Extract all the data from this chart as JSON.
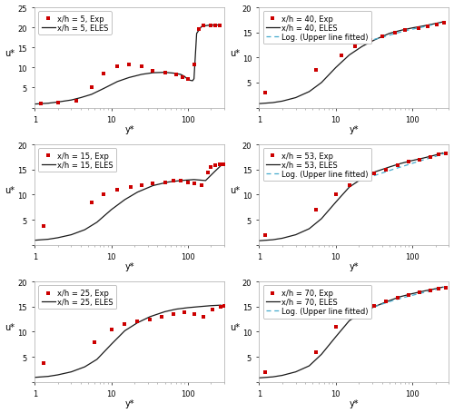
{
  "subplots": [
    {
      "label_exp": "x/h = 5, Exp",
      "label_eles": "x/h = 5, ELES",
      "ylim": [
        0,
        25
      ],
      "yticks": [
        0,
        5,
        10,
        15,
        20,
        25
      ],
      "xlim": [
        1,
        300
      ],
      "has_log_line": false,
      "exp_x": [
        1.2,
        2.0,
        3.5,
        5.5,
        8.0,
        12,
        17,
        25,
        35,
        50,
        70,
        85,
        100,
        120,
        140,
        160,
        200,
        230,
        260
      ],
      "exp_y": [
        1.0,
        1.3,
        1.8,
        5.2,
        8.5,
        10.2,
        10.8,
        10.2,
        9.2,
        8.8,
        8.2,
        7.5,
        7.2,
        10.8,
        19.5,
        20.5,
        20.6,
        20.5,
        20.5
      ],
      "eles_x": [
        1.0,
        1.5,
        2.0,
        3.0,
        4.0,
        5.5,
        8.0,
        12,
        17,
        25,
        35,
        50,
        65,
        80,
        90,
        100,
        108,
        115,
        120,
        130,
        150,
        180,
        220,
        260
      ],
      "eles_y": [
        0.9,
        1.1,
        1.4,
        1.9,
        2.5,
        3.3,
        4.8,
        6.5,
        7.5,
        8.3,
        8.7,
        8.8,
        8.6,
        8.3,
        7.8,
        7.0,
        6.8,
        6.7,
        7.2,
        18.5,
        20.2,
        20.5,
        20.6,
        20.6
      ]
    },
    {
      "label_exp": "x/h = 40, Exp",
      "label_eles": "x/h = 40, ELES",
      "label_log": "Log. (Upper line fitted)",
      "ylim": [
        0,
        20
      ],
      "yticks": [
        0,
        5,
        10,
        15,
        20
      ],
      "xlim": [
        1,
        300
      ],
      "has_log_line": true,
      "exp_x": [
        1.2,
        5.5,
        12,
        18,
        28,
        40,
        60,
        80,
        120,
        160,
        210,
        260
      ],
      "exp_y": [
        3.0,
        7.5,
        10.5,
        12.3,
        13.5,
        14.3,
        15.0,
        15.5,
        15.9,
        16.3,
        16.6,
        17.0
      ],
      "eles_x": [
        1.0,
        1.5,
        2.0,
        3.0,
        4.5,
        6.5,
        10,
        15,
        22,
        32,
        50,
        70,
        100,
        140,
        190,
        250
      ],
      "eles_y": [
        0.8,
        1.0,
        1.3,
        2.0,
        3.2,
        5.0,
        8.0,
        10.5,
        12.2,
        13.5,
        14.8,
        15.4,
        15.9,
        16.3,
        16.7,
        17.1
      ],
      "log_x": [
        25,
        40,
        60,
        90,
        130,
        180,
        250
      ],
      "log_y": [
        13.2,
        14.0,
        14.8,
        15.5,
        16.0,
        16.5,
        17.0
      ]
    },
    {
      "label_exp": "x/h = 15, Exp",
      "label_eles": "x/h = 15, ELES",
      "ylim": [
        0,
        20
      ],
      "yticks": [
        0,
        5,
        10,
        15,
        20
      ],
      "xlim": [
        1,
        300
      ],
      "has_log_line": false,
      "exp_x": [
        1.3,
        5.5,
        8.0,
        12,
        18,
        25,
        35,
        50,
        65,
        80,
        100,
        120,
        150,
        180,
        200,
        230,
        260,
        280,
        300
      ],
      "exp_y": [
        3.7,
        8.5,
        10.0,
        11.0,
        11.5,
        11.8,
        12.2,
        12.5,
        12.8,
        12.7,
        12.5,
        12.2,
        11.8,
        14.5,
        15.5,
        15.8,
        16.0,
        16.0,
        16.0
      ],
      "eles_x": [
        1.0,
        1.5,
        2.0,
        3.0,
        4.5,
        6.5,
        10,
        15,
        22,
        35,
        55,
        80,
        120,
        170,
        220,
        270
      ],
      "eles_y": [
        0.9,
        1.1,
        1.4,
        2.0,
        3.0,
        4.5,
        7.0,
        9.0,
        10.5,
        11.8,
        12.5,
        12.8,
        13.0,
        12.8,
        14.5,
        15.8
      ]
    },
    {
      "label_exp": "x/h = 53, Exp",
      "label_eles": "x/h = 53, ELES",
      "label_log": "Log. (Upper line fitted)",
      "ylim": [
        0,
        20
      ],
      "yticks": [
        0,
        5,
        10,
        15,
        20
      ],
      "xlim": [
        1,
        300
      ],
      "has_log_line": true,
      "exp_x": [
        1.2,
        5.5,
        10,
        15,
        22,
        32,
        45,
        65,
        90,
        125,
        170,
        220,
        270
      ],
      "exp_y": [
        2.0,
        7.0,
        10.0,
        11.8,
        13.2,
        14.2,
        15.0,
        15.8,
        16.5,
        17.0,
        17.5,
        18.0,
        18.3
      ],
      "eles_x": [
        1.0,
        1.5,
        2.0,
        3.0,
        4.5,
        6.5,
        10,
        15,
        22,
        32,
        50,
        70,
        100,
        140,
        190,
        250
      ],
      "eles_y": [
        0.8,
        1.0,
        1.3,
        2.0,
        3.2,
        5.2,
        8.5,
        11.5,
        13.2,
        14.5,
        15.5,
        16.2,
        16.8,
        17.3,
        17.8,
        18.3
      ],
      "log_x": [
        20,
        35,
        55,
        85,
        130,
        190,
        260
      ],
      "log_y": [
        12.8,
        14.0,
        15.0,
        15.9,
        16.8,
        17.5,
        18.2
      ]
    },
    {
      "label_exp": "x/h = 25, Exp",
      "label_eles": "x/h = 25, ELES",
      "ylim": [
        0,
        20
      ],
      "yticks": [
        0,
        5,
        10,
        15,
        20
      ],
      "xlim": [
        1,
        300
      ],
      "has_log_line": false,
      "exp_x": [
        1.3,
        6.0,
        10,
        15,
        22,
        32,
        45,
        65,
        90,
        120,
        160,
        210,
        265,
        300
      ],
      "exp_y": [
        3.8,
        8.0,
        10.5,
        11.5,
        12.0,
        12.5,
        13.0,
        13.5,
        13.8,
        13.5,
        13.0,
        14.5,
        15.0,
        15.2
      ],
      "eles_x": [
        1.0,
        1.5,
        2.0,
        3.0,
        4.5,
        6.5,
        10,
        15,
        22,
        32,
        50,
        70,
        100,
        140,
        200,
        270
      ],
      "eles_y": [
        0.9,
        1.1,
        1.4,
        2.0,
        3.0,
        4.5,
        7.5,
        10.2,
        11.8,
        13.0,
        14.0,
        14.5,
        14.8,
        15.0,
        15.2,
        15.3
      ]
    },
    {
      "label_exp": "x/h = 70, Exp",
      "label_eles": "x/h = 70, ELES",
      "label_log": "Log. (Upper line fitted)",
      "ylim": [
        0,
        20
      ],
      "yticks": [
        0,
        5,
        10,
        15,
        20
      ],
      "xlim": [
        1,
        300
      ],
      "has_log_line": true,
      "exp_x": [
        1.2,
        5.5,
        10,
        15,
        22,
        32,
        45,
        65,
        90,
        125,
        170,
        220,
        270
      ],
      "exp_y": [
        2.0,
        6.0,
        11.0,
        13.0,
        14.5,
        15.2,
        16.0,
        16.8,
        17.3,
        17.8,
        18.2,
        18.5,
        18.8
      ],
      "eles_x": [
        1.0,
        1.5,
        2.0,
        3.0,
        4.5,
        6.5,
        10,
        15,
        22,
        32,
        50,
        70,
        100,
        140,
        190,
        250
      ],
      "eles_y": [
        0.8,
        1.0,
        1.3,
        2.0,
        3.2,
        5.5,
        9.0,
        12.2,
        13.8,
        15.0,
        16.2,
        17.0,
        17.6,
        18.1,
        18.5,
        18.9
      ],
      "log_x": [
        20,
        35,
        55,
        85,
        130,
        190,
        260
      ],
      "log_y": [
        14.0,
        15.2,
        16.2,
        17.0,
        17.7,
        18.3,
        18.9
      ]
    }
  ],
  "marker_color": "#cc0000",
  "line_color": "#1a1a1a",
  "log_line_color": "#44aacc",
  "background_color": "#ffffff",
  "ylabel": "u*",
  "xlabel": "y*",
  "fontsize": 7,
  "legend_fontsize": 6,
  "marker_size": 3.5
}
